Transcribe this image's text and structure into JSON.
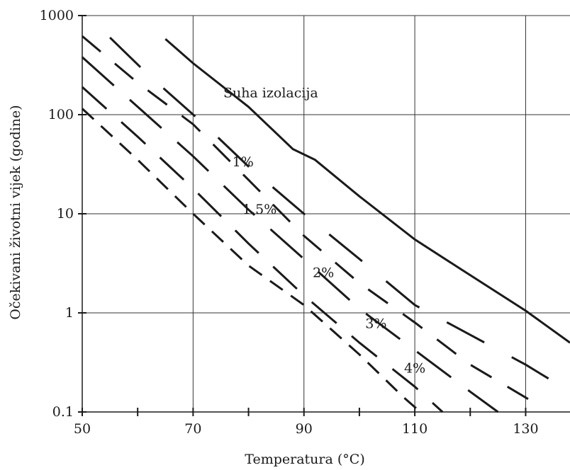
{
  "chart_data": {
    "type": "line",
    "xlabel": "Temperatura (°C)",
    "ylabel": "Očekivani životni vijek (godine)",
    "xlim": [
      50,
      138
    ],
    "ylim": [
      0.1,
      1000
    ],
    "yscale": "log",
    "grid": true,
    "x_ticks": [
      50,
      70,
      90,
      110,
      130
    ],
    "x_tick_labels": [
      "50",
      "70",
      "90",
      "110",
      "130"
    ],
    "y_ticks": [
      0.1,
      1,
      10,
      100,
      1000
    ],
    "y_tick_labels": [
      "0.1",
      "1",
      "10",
      "100",
      "1000"
    ],
    "series": [
      {
        "name": "Suha izolacija",
        "label": "Suha izolacija",
        "points": [
          [
            65,
            580
          ],
          [
            70,
            330
          ],
          [
            80,
            120
          ],
          [
            88,
            45
          ],
          [
            92,
            35
          ],
          [
            100,
            15
          ],
          [
            110,
            5.5
          ],
          [
            120,
            2.4
          ],
          [
            130,
            1.05
          ],
          [
            138,
            0.5
          ]
        ]
      },
      {
        "name": "1%",
        "label": "1%",
        "points": [
          [
            55,
            600
          ],
          [
            62,
            250
          ],
          [
            72,
            80
          ],
          [
            80,
            30
          ],
          [
            90,
            10
          ],
          [
            100,
            3.5
          ],
          [
            110,
            1.2
          ],
          [
            120,
            0.6
          ],
          [
            130,
            0.3
          ],
          [
            138,
            0.16
          ]
        ]
      },
      {
        "name": "1.5%",
        "label": "1.5%",
        "points": [
          [
            50,
            620
          ],
          [
            60,
            210
          ],
          [
            70,
            80
          ],
          [
            80,
            22
          ],
          [
            90,
            6
          ],
          [
            100,
            2
          ],
          [
            110,
            0.8
          ],
          [
            120,
            0.3
          ],
          [
            132,
            0.12
          ]
        ]
      },
      {
        "name": "2%",
        "label": "2%",
        "points": [
          [
            50,
            380
          ],
          [
            60,
            120
          ],
          [
            70,
            38
          ],
          [
            80,
            11
          ],
          [
            90,
            3.5
          ],
          [
            100,
            1.1
          ],
          [
            110,
            0.42
          ],
          [
            120,
            0.16
          ],
          [
            125,
            0.1
          ]
        ]
      },
      {
        "name": "3%",
        "label": "3%",
        "points": [
          [
            50,
            190
          ],
          [
            60,
            60
          ],
          [
            70,
            18
          ],
          [
            80,
            5
          ],
          [
            90,
            1.5
          ],
          [
            100,
            0.5
          ],
          [
            110,
            0.18
          ],
          [
            115,
            0.1
          ]
        ]
      },
      {
        "name": "4%",
        "label": "4%",
        "points": [
          [
            50,
            115
          ],
          [
            60,
            35
          ],
          [
            70,
            10
          ],
          [
            80,
            3
          ],
          [
            90,
            1.2
          ],
          [
            100,
            0.38
          ],
          [
            108,
            0.14
          ],
          [
            111,
            0.1
          ]
        ]
      }
    ],
    "curve_labels": [
      {
        "text": "Suha izolacija",
        "x": 84,
        "y": 150
      },
      {
        "text": "1%",
        "x": 79,
        "y": 30
      },
      {
        "text": "1.5%",
        "x": 82,
        "y": 10
      },
      {
        "text": "2%",
        "x": 93.5,
        "y": 2.3
      },
      {
        "text": "3%",
        "x": 103,
        "y": 0.7
      },
      {
        "text": "4%",
        "x": 110,
        "y": 0.25
      }
    ]
  }
}
